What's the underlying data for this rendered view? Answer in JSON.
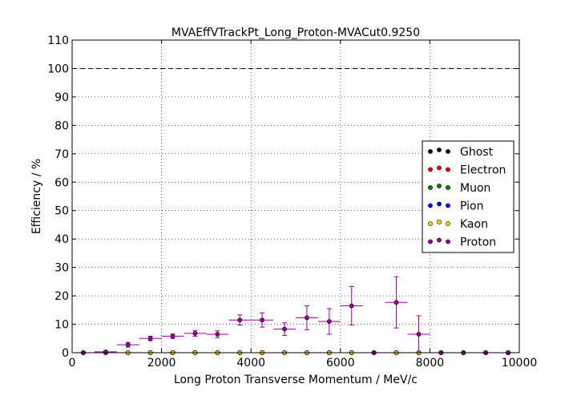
{
  "chart_data": {
    "type": "scatter",
    "title": "MVAEffVTrackPt_Long_Proton-MVACut0.9250",
    "xlabel": "Long Proton Transverse Momentum / MeV/c",
    "ylabel": "Efficiency / %",
    "xlim": [
      0,
      10000
    ],
    "ylim": [
      0,
      110
    ],
    "xticks": [
      0,
      2000,
      4000,
      6000,
      8000,
      10000
    ],
    "yticks": [
      0,
      10,
      20,
      30,
      40,
      50,
      60,
      70,
      80,
      90,
      100,
      110
    ],
    "grid": true,
    "reference_line": 100,
    "legend_position": "center-right",
    "bin_half_width": 250,
    "x": [
      250,
      750,
      1250,
      1750,
      2250,
      2750,
      3250,
      3750,
      4250,
      4750,
      5250,
      5750,
      6250,
      6750,
      7250,
      7750,
      8250,
      8750,
      9250,
      9750
    ],
    "series": [
      {
        "name": "Ghost",
        "color": "#000000",
        "values": [
          0,
          0,
          0,
          0,
          0,
          0,
          0,
          0,
          0,
          0,
          0,
          0,
          0,
          0,
          0,
          0,
          0,
          0,
          0,
          0
        ],
        "errors": [
          0,
          0,
          0,
          0,
          0,
          0,
          0,
          0,
          0,
          0,
          0,
          0,
          0,
          0,
          0,
          0,
          0,
          0,
          0,
          0
        ]
      },
      {
        "name": "Electron",
        "color": "#ff0000",
        "values": [
          0,
          0,
          0,
          0,
          0,
          0,
          0,
          0,
          0,
          0,
          0,
          0,
          0,
          0,
          0,
          0,
          0,
          0,
          0,
          0
        ],
        "errors": [
          0,
          0,
          0,
          0,
          0,
          0,
          0,
          0,
          0,
          0,
          0,
          0,
          0,
          0,
          0,
          0,
          0,
          0,
          0,
          0
        ]
      },
      {
        "name": "Muon",
        "color": "#008000",
        "values": [
          0,
          0,
          0,
          0,
          0,
          0,
          0,
          0,
          0,
          0,
          0,
          0,
          0,
          0,
          0,
          0,
          0,
          0,
          0,
          0
        ],
        "errors": [
          0,
          0,
          0,
          0,
          0,
          0,
          0,
          0,
          0,
          0,
          0,
          0,
          0,
          0,
          0,
          0,
          0,
          0,
          0,
          0
        ]
      },
      {
        "name": "Pion",
        "color": "#0000ff",
        "values": [
          0,
          0,
          0,
          0,
          0,
          0,
          0,
          0,
          0,
          0,
          0,
          0,
          0,
          0,
          0,
          0,
          0,
          0,
          0,
          0
        ],
        "errors": [
          0,
          0,
          0,
          0,
          0,
          0,
          0,
          0,
          0,
          0,
          0,
          0,
          0,
          0,
          0,
          0,
          0,
          0,
          0,
          0
        ]
      },
      {
        "name": "Kaon",
        "color": "#ffd700",
        "values": [
          0,
          0,
          0,
          0,
          0,
          0,
          0,
          0,
          0,
          0,
          0,
          0,
          0,
          0,
          0,
          0,
          0,
          0,
          0,
          0
        ],
        "errors": [
          0,
          0,
          0,
          0,
          0,
          0,
          0,
          0,
          0,
          0,
          0,
          0,
          0,
          0,
          0,
          0,
          0,
          0,
          0,
          0
        ]
      },
      {
        "name": "Proton",
        "color": "#990099",
        "values": [
          0,
          0.3,
          2.8,
          5.0,
          5.8,
          6.8,
          6.5,
          11.5,
          11.5,
          8.3,
          12.3,
          11.0,
          16.5,
          0,
          17.7,
          6.5,
          0,
          0,
          0,
          0
        ],
        "errors": [
          0.1,
          0.3,
          0.8,
          0.8,
          0.8,
          1.0,
          1.2,
          1.8,
          2.5,
          2.2,
          4.2,
          4.5,
          6.8,
          0,
          9.0,
          6.5,
          0,
          0,
          0,
          0
        ]
      }
    ]
  }
}
